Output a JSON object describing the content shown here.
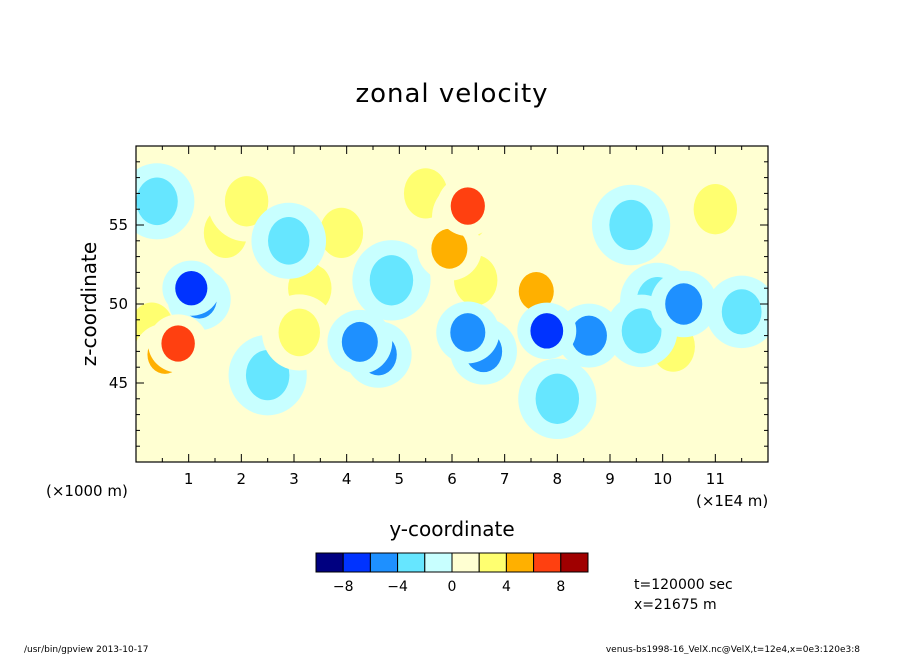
{
  "chart_data": {
    "type": "heatmap",
    "title": "zonal velocity",
    "xlabel": "y-coordinate",
    "ylabel": "z-coordinate",
    "x_scale_label": "(×1E4 m)",
    "y_scale_label": "(×1000 m)",
    "x_range": [
      0,
      12
    ],
    "y_range": [
      40,
      60
    ],
    "x_ticks": [
      "1",
      "2",
      "3",
      "4",
      "5",
      "6",
      "7",
      "8",
      "9",
      "10",
      "11"
    ],
    "y_ticks": [
      "45",
      "50",
      "55"
    ],
    "colorbar": {
      "levels": [
        -10,
        -8,
        -6,
        -4,
        -2,
        0,
        2,
        4,
        6,
        8,
        10
      ],
      "labels": [
        "−8",
        "−4",
        "0",
        "4",
        "8"
      ],
      "colors": [
        "#000080",
        "#0033ff",
        "#1e90ff",
        "#66e6ff",
        "#c8ffff",
        "#ffffd2",
        "#ffff70",
        "#ffb000",
        "#ff4010",
        "#a00000"
      ]
    },
    "info_lines": [
      "t=120000 sec",
      "x=21675 m"
    ],
    "cells": [
      [
        1.05,
        51.0,
        -7.5
      ],
      [
        1.2,
        50.3,
        -5.5
      ],
      [
        0.8,
        47.5,
        6.5
      ],
      [
        0.55,
        46.8,
        5.5
      ],
      [
        0.3,
        48.5,
        2.5
      ],
      [
        1.7,
        54.5,
        2.5
      ],
      [
        2.1,
        56.5,
        2.5
      ],
      [
        2.9,
        54.0,
        -3.0
      ],
      [
        3.3,
        51.0,
        2.5
      ],
      [
        3.1,
        48.2,
        3.0
      ],
      [
        3.9,
        54.5,
        2.5
      ],
      [
        4.25,
        47.6,
        -5.0
      ],
      [
        4.6,
        46.8,
        -4.5
      ],
      [
        4.85,
        51.5,
        -2.5
      ],
      [
        6.3,
        55.5,
        3.5
      ],
      [
        6.3,
        56.2,
        6.0
      ],
      [
        5.95,
        53.5,
        5.0
      ],
      [
        6.45,
        51.5,
        2.5
      ],
      [
        6.3,
        48.2,
        -5.5
      ],
      [
        6.6,
        47.0,
        -4.5
      ],
      [
        7.8,
        48.3,
        -7.0
      ],
      [
        7.6,
        50.8,
        5.5
      ],
      [
        8.6,
        48.0,
        -5.0
      ],
      [
        9.6,
        48.3,
        -3.5
      ],
      [
        9.9,
        50.2,
        -3.0
      ],
      [
        10.4,
        50.0,
        -4.5
      ],
      [
        10.2,
        47.3,
        2.5
      ],
      [
        11.5,
        49.5,
        -3.5
      ],
      [
        0.4,
        56.5,
        -3.0
      ],
      [
        5.5,
        57.0,
        2.5
      ],
      [
        8.0,
        44.0,
        -2.5
      ],
      [
        2.5,
        45.5,
        -2.5
      ],
      [
        11.0,
        56.0,
        2.5
      ],
      [
        9.4,
        55.0,
        -2.5
      ]
    ]
  },
  "footer": {
    "left": "/usr/bin/gpview   2013-10-17",
    "right": "venus-bs1998-16_VelX.nc@VelX,t=12e4,x=0e3:120e3:8"
  }
}
